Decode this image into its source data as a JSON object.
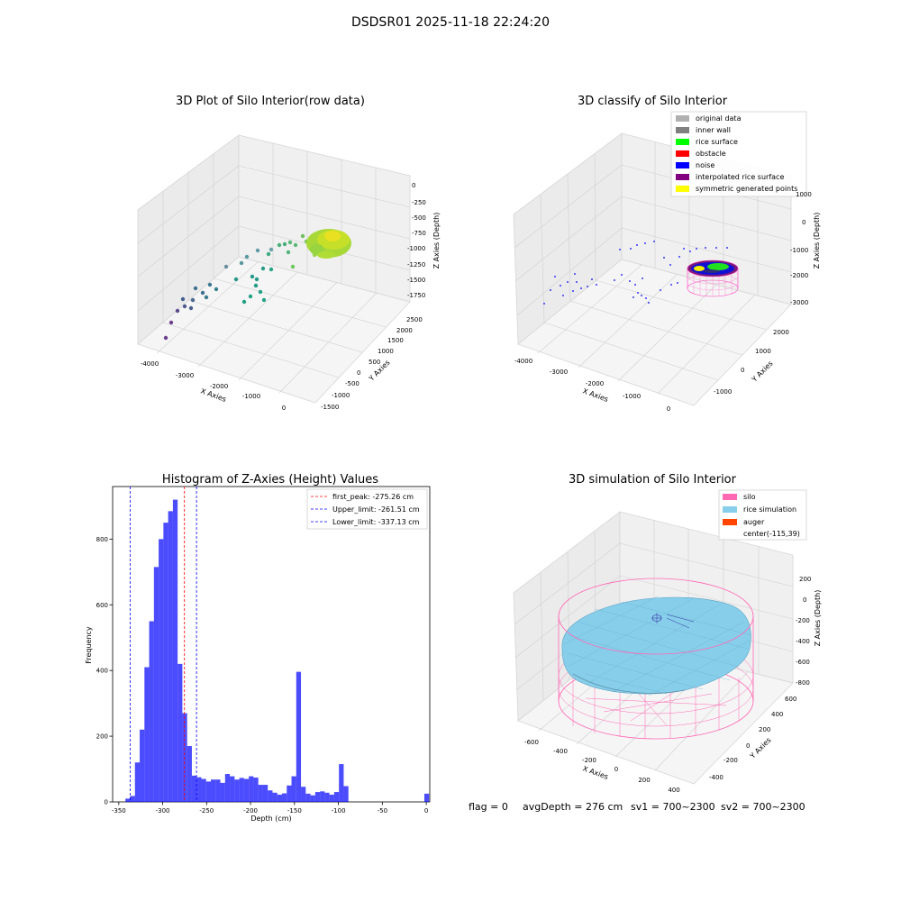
{
  "figure": {
    "suptitle": "DSDSR01 2025-11-18 22:24:20",
    "flag_text": "flag = 0",
    "avg_depth_text": "avgDepth = 276 cm",
    "sv1_text": "sv1 = 700~2300",
    "sv2_text": "sv2 = 700~2300"
  },
  "panels": {
    "raw": {
      "title": "3D Plot of Silo Interior(row data)",
      "xlabel": "X Axies",
      "ylabel": "Y Axies",
      "zlabel": "Z Axies (Depth)",
      "x_ticks": [
        "-4000",
        "-3000",
        "-2000",
        "-1000",
        "0"
      ],
      "y_ticks": [
        "-1500",
        "-1000",
        "-500",
        "0",
        "500",
        "1000",
        "1500",
        "2000",
        "2500"
      ],
      "z_ticks": [
        "0",
        "-250",
        "-500",
        "-750",
        "-1000",
        "-1250",
        "-1500",
        "-1750"
      ]
    },
    "classify": {
      "title": "3D classify of Silo Interior",
      "xlabel": "X Axies",
      "ylabel": "Y Axies",
      "zlabel": "Z Axies (Depth)",
      "x_ticks": [
        "-4000",
        "-3000",
        "-2000",
        "-1000",
        "0"
      ],
      "y_ticks": [
        "-1000",
        "0",
        "1000",
        "2000"
      ],
      "z_ticks": [
        "1000",
        "0",
        "-1000",
        "-2000",
        "-3000"
      ],
      "legend": [
        {
          "label": "original data",
          "color": "#b0b0b0"
        },
        {
          "label": "inner wall",
          "color": "#808080"
        },
        {
          "label": "rice surface",
          "color": "#00ff00"
        },
        {
          "label": "obstacle",
          "color": "#ff0000"
        },
        {
          "label": "noise",
          "color": "#0000ff"
        },
        {
          "label": "interpolated rice surface",
          "color": "#800080"
        },
        {
          "label": "symmetric generated points",
          "color": "#ffff00"
        }
      ]
    },
    "simulation": {
      "title": "3D simulation of Silo Interior",
      "xlabel": "X Axies",
      "ylabel": "Y Axies",
      "zlabel": "Z Axies (Depth)",
      "x_ticks": [
        "-600",
        "-400",
        "-200",
        "0",
        "200",
        "400"
      ],
      "y_ticks": [
        "-400",
        "-200",
        "0",
        "200",
        "400",
        "600"
      ],
      "z_ticks": [
        "200",
        "0",
        "-200",
        "-400",
        "-600",
        "-800"
      ],
      "legend": [
        {
          "label": "silo",
          "color": "#ff69b4"
        },
        {
          "label": "rice simulation",
          "color": "#87ceeb"
        },
        {
          "label": "auger",
          "color": "#ff4500"
        },
        {
          "label": "center(-115,39)",
          "color": "none"
        }
      ]
    }
  },
  "chart_data": [
    {
      "type": "bar",
      "title": "Histogram of Z-Axies (Height) Values",
      "xlabel": "Depth (cm)",
      "ylabel": "Frequency",
      "xlim": [
        -357,
        4
      ],
      "ylim": [
        0,
        960
      ],
      "x_ticks": [
        -350,
        -300,
        -250,
        -200,
        -150,
        -100,
        -50,
        0
      ],
      "y_ticks": [
        0,
        200,
        400,
        600,
        800
      ],
      "bin_width": 5.4,
      "bin_starts": [
        -342.4,
        -337.0,
        -331.6,
        -326.2,
        -320.8,
        -315.4,
        -310.0,
        -304.6,
        -299.2,
        -293.8,
        -288.4,
        -283.0,
        -277.6,
        -272.2,
        -266.8,
        -261.4,
        -256.0,
        -250.6,
        -245.2,
        -239.8,
        -234.4,
        -229.0,
        -223.6,
        -218.2,
        -212.8,
        -207.4,
        -202.0,
        -196.6,
        -191.2,
        -185.8,
        -180.4,
        -175.0,
        -169.6,
        -164.2,
        -158.8,
        -153.4,
        -148.0,
        -142.6,
        -137.2,
        -131.8,
        -126.4,
        -121.0,
        -115.6,
        -110.2,
        -104.8,
        -99.4,
        -94.0,
        -88.6,
        -83.2,
        -77.8,
        -72.4,
        -67.0,
        -61.6,
        -56.2,
        -50.8,
        -45.4,
        -40.0,
        -34.6,
        -29.2,
        -23.8,
        -18.4,
        -13.0,
        -7.6,
        -2.2
      ],
      "values": [
        10,
        18,
        120,
        220,
        410,
        550,
        715,
        800,
        850,
        885,
        920,
        420,
        270,
        170,
        80,
        75,
        70,
        62,
        68,
        68,
        58,
        85,
        78,
        68,
        73,
        70,
        78,
        74,
        52,
        52,
        35,
        28,
        22,
        26,
        50,
        78,
        396,
        46,
        25,
        20,
        30,
        32,
        28,
        22,
        30,
        115,
        48,
        0,
        0,
        0,
        0,
        0,
        0,
        0,
        0,
        0,
        0,
        0,
        0,
        0,
        0,
        0,
        0,
        25
      ],
      "series_color": "#0000ff",
      "lines": [
        {
          "name": "first_peak: -275.26 cm",
          "x": -275.26,
          "color": "#ff0000"
        },
        {
          "name": "Upper_limit: -261.51 cm",
          "x": -261.51,
          "color": "#0000ff"
        },
        {
          "name": "Lower_limit: -337.13 cm",
          "x": -337.13,
          "color": "#0000ff"
        }
      ],
      "legend_position": "upper right"
    }
  ]
}
